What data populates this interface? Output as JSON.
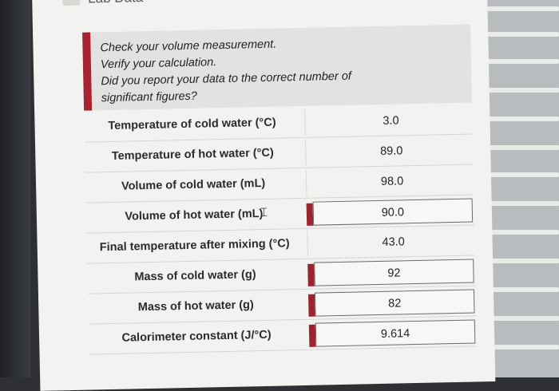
{
  "header": {
    "title": "Lab Data"
  },
  "feedback": {
    "lines": [
      "Check your volume measurement.",
      "Verify your calculation.",
      "Did you report your data to the correct number of",
      "significant figures?"
    ]
  },
  "rows": [
    {
      "label": "Temperature of cold water (°C)",
      "value": "3.0",
      "flagged": false
    },
    {
      "label": "Temperature of hot water (°C)",
      "value": "89.0",
      "flagged": false
    },
    {
      "label": "Volume of cold water (mL)",
      "value": "98.0",
      "flagged": false
    },
    {
      "label": "Volume of hot water (mL)",
      "value": "90.0",
      "flagged": true
    },
    {
      "label": "Final temperature after mixing (°C)",
      "value": "43.0",
      "flagged": false
    },
    {
      "label": "Mass of cold water (g)",
      "value": "92",
      "flagged": true
    },
    {
      "label": "Mass of hot water (g)",
      "value": "82",
      "flagged": true
    },
    {
      "label": "Calorimeter constant (J/°C)",
      "value": "9.614",
      "flagged": true
    }
  ],
  "colors": {
    "flag": "#a8232f",
    "background": "#f2f2f0"
  },
  "icons": {
    "cursor": "text-cursor-icon"
  }
}
